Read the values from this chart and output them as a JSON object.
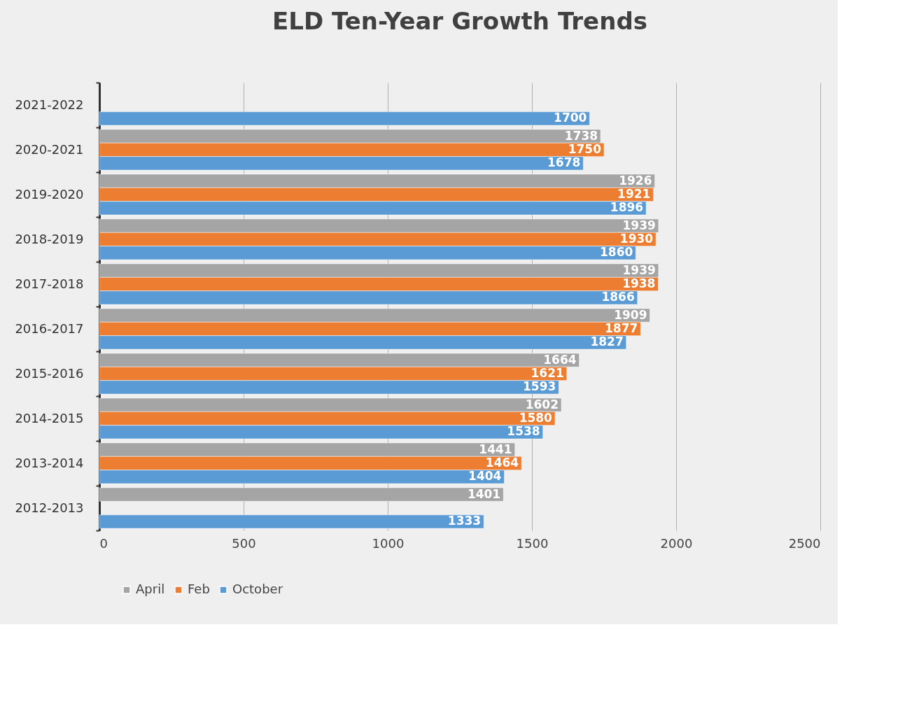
{
  "chart_data": {
    "type": "bar",
    "title": "ELD Ten-Year Growth Trends",
    "orientation": "horizontal",
    "categories": [
      "2021-2022",
      "2020-2021",
      "2019-2020",
      "2018-2019",
      "2017-2018",
      "2016-2017",
      "2015-2016",
      "2014-2015",
      "2013-2014",
      "2012-2013"
    ],
    "series": [
      {
        "name": "April",
        "color": "#a5a5a5",
        "values": [
          null,
          1738,
          1926,
          1939,
          1939,
          1909,
          1664,
          1602,
          1441,
          1401
        ]
      },
      {
        "name": "Feb",
        "color": "#ed7d31",
        "values": [
          null,
          1750,
          1921,
          1930,
          1938,
          1877,
          1621,
          1580,
          1464,
          null
        ]
      },
      {
        "name": "October",
        "color": "#5b9bd5",
        "values": [
          1700,
          1678,
          1896,
          1860,
          1866,
          1827,
          1593,
          1538,
          1404,
          1333
        ]
      }
    ],
    "xlim": [
      0,
      2500
    ],
    "xticks": [
      0,
      500,
      1000,
      1500,
      2000,
      2500
    ],
    "grid": "x",
    "legend": "bottom",
    "data_labels": true
  }
}
